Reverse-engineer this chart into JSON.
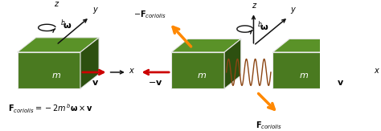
{
  "bg_color": "#ffffff",
  "box_face": "#4a7a20",
  "box_top": "#5a9228",
  "box_dark": "#2d5010",
  "box_edge": "#e8e8e8",
  "arrow_red": "#cc0000",
  "arrow_orange": "#ff8800",
  "arrow_black": "#111111",
  "spring_color": "#8B4513",
  "fig_width": 4.74,
  "fig_height": 1.63,
  "dpi": 100
}
